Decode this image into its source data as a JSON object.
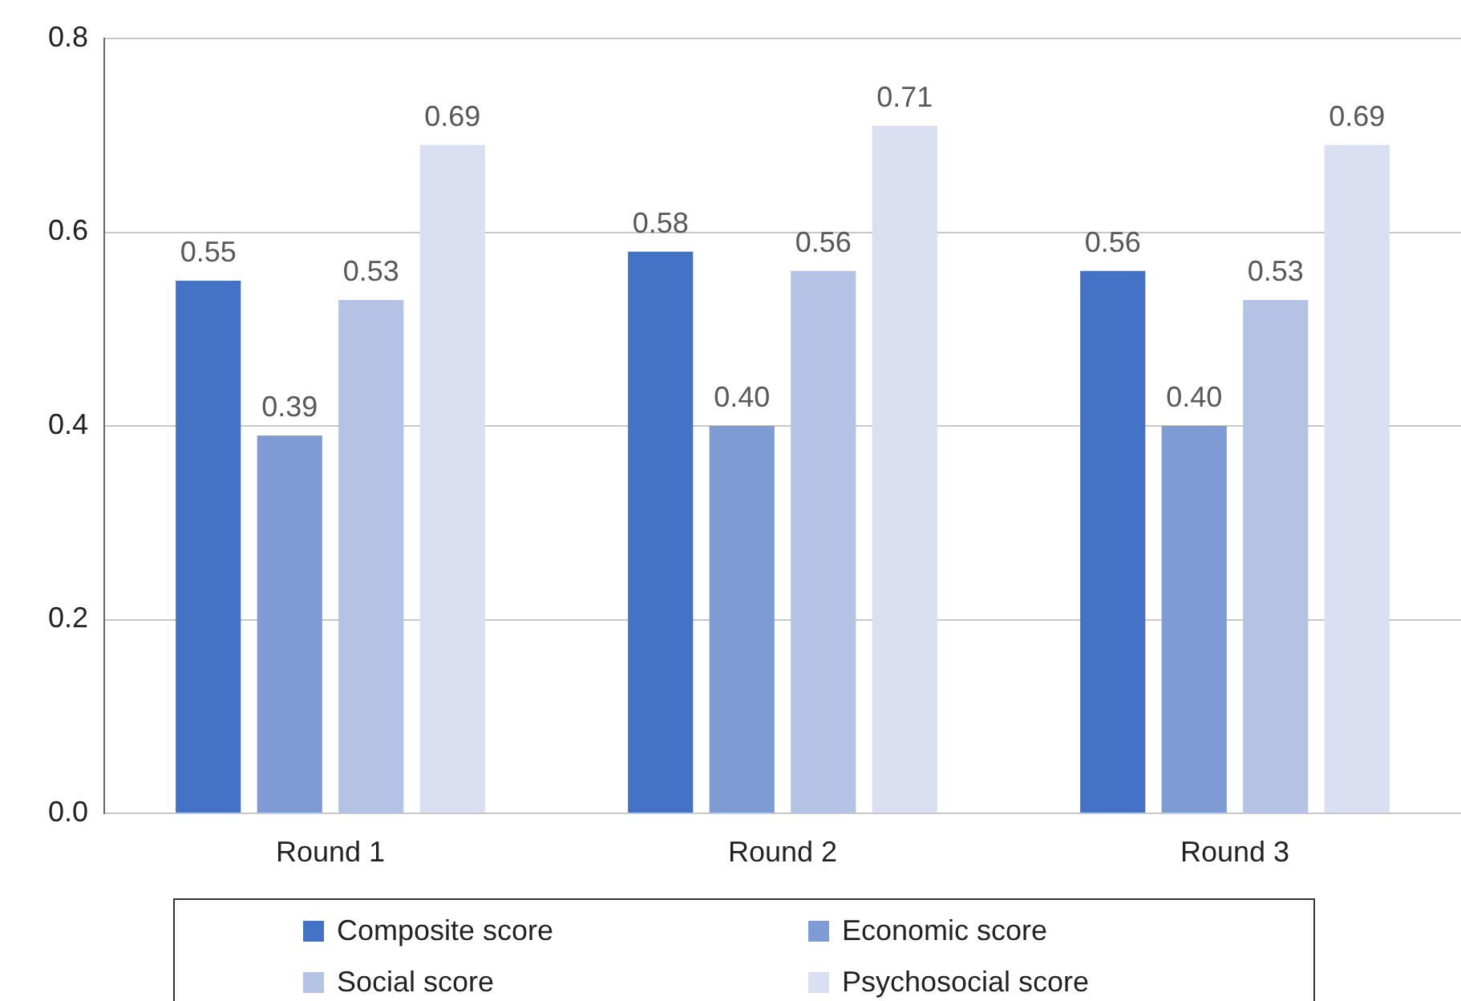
{
  "chart_data": {
    "type": "bar",
    "categories": [
      "Round 1",
      "Round 2",
      "Round 3"
    ],
    "series": [
      {
        "name": "Composite score",
        "color": "#4472c4",
        "values": [
          0.55,
          0.58,
          0.56
        ],
        "value_labels": [
          "0.55",
          "0.58",
          "0.56"
        ]
      },
      {
        "name": "Economic score",
        "color": "#7f9bd4",
        "values": [
          0.39,
          0.4,
          0.4
        ],
        "value_labels": [
          "0.39",
          "0.40",
          "0.40"
        ]
      },
      {
        "name": "Social score",
        "color": "#b4c3e4",
        "values": [
          0.53,
          0.56,
          0.53
        ],
        "value_labels": [
          "0.53",
          "0.56",
          "0.53"
        ]
      },
      {
        "name": "Psychosocial score",
        "color": "#dae0f2",
        "values": [
          0.69,
          0.71,
          0.69
        ],
        "value_labels": [
          "0.69",
          "0.71",
          "0.69"
        ]
      }
    ],
    "ylim": [
      0,
      0.8
    ],
    "yticks": [
      {
        "value": 0,
        "label": "0.0"
      },
      0.2,
      0.4,
      0.6,
      0.8
    ],
    "grid": "y",
    "legend": "bottom"
  }
}
